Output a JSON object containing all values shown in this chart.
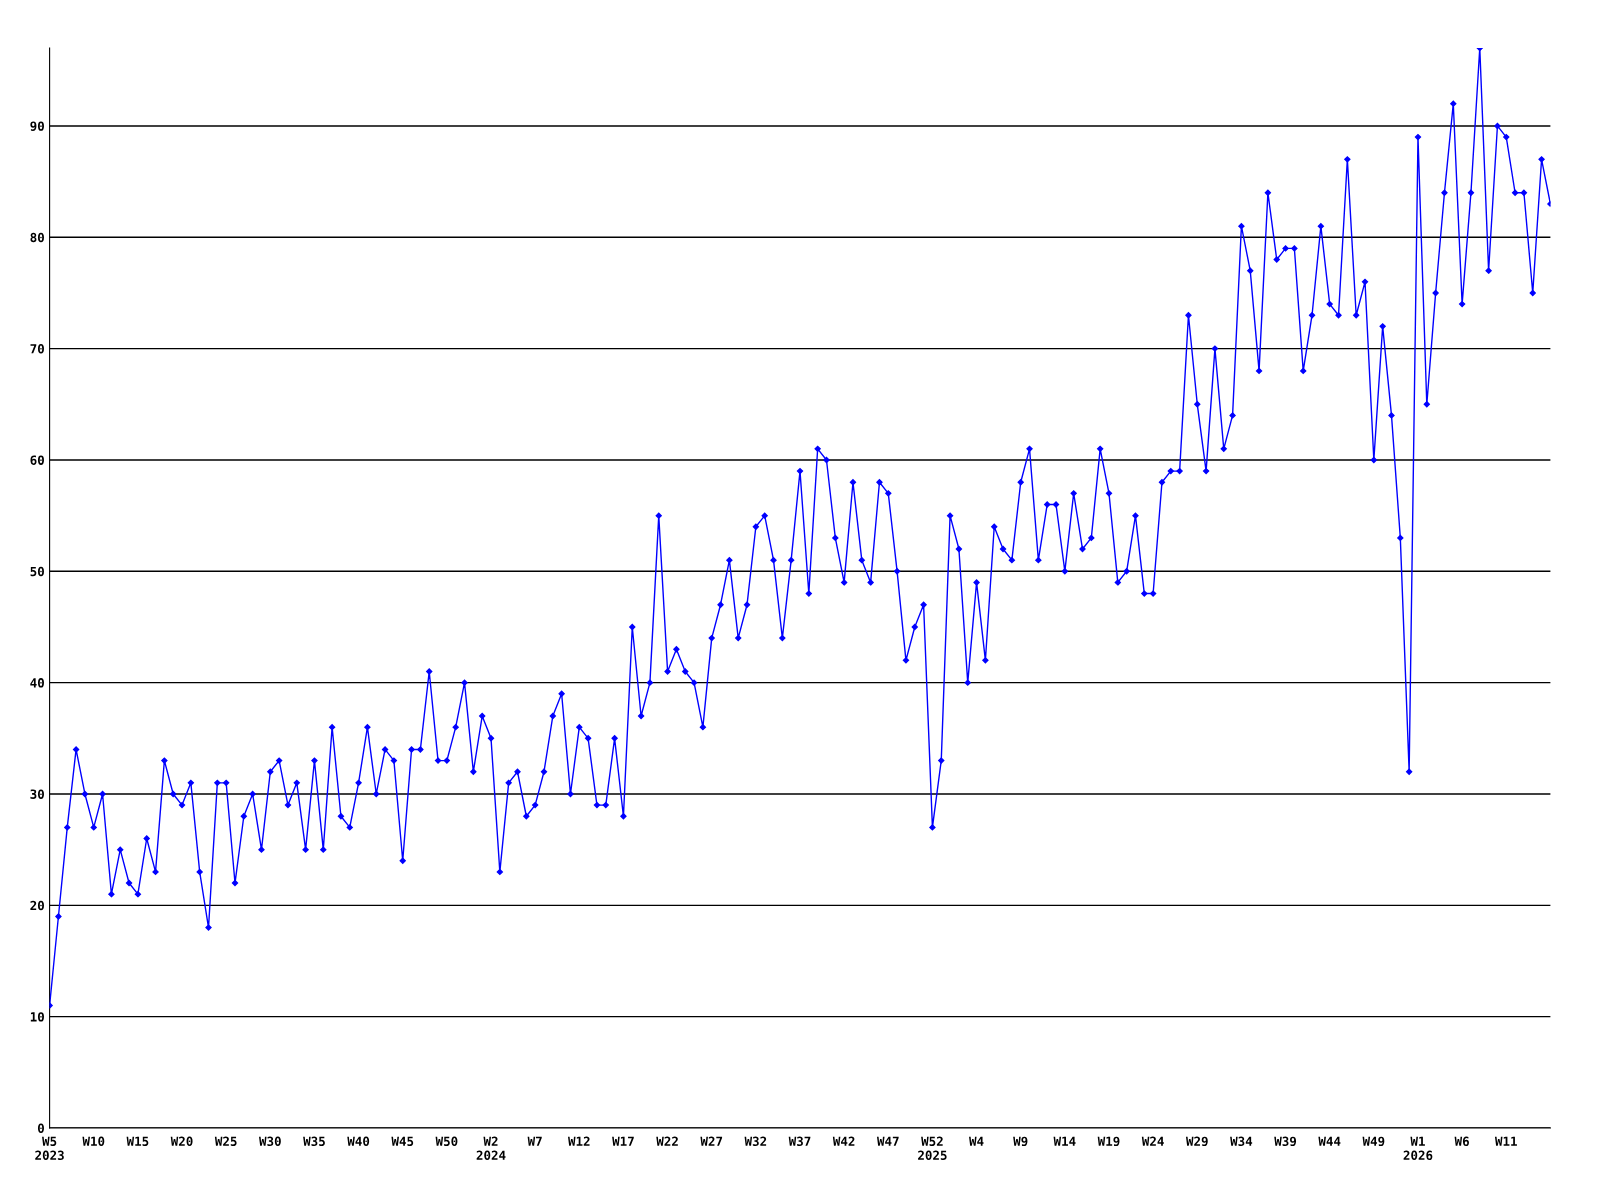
{
  "chart_data": {
    "type": "line",
    "categories": [
      "W5\n2023",
      null,
      null,
      null,
      null,
      "W10",
      null,
      null,
      null,
      null,
      "W15",
      null,
      null,
      null,
      null,
      "W20",
      null,
      null,
      null,
      null,
      "W25",
      null,
      null,
      null,
      null,
      "W30",
      null,
      null,
      null,
      null,
      "W35",
      null,
      null,
      null,
      null,
      "W40",
      null,
      null,
      null,
      null,
      "W45",
      null,
      null,
      null,
      null,
      "W50",
      null,
      null,
      null,
      null,
      "W2\n2024",
      null,
      null,
      null,
      null,
      "W7",
      null,
      null,
      null,
      null,
      "W12",
      null,
      null,
      null,
      null,
      "W17",
      null,
      null,
      null,
      null,
      "W22",
      null,
      null,
      null,
      null,
      "W27",
      null,
      null,
      null,
      null,
      "W32",
      null,
      null,
      null,
      null,
      "W37",
      null,
      null,
      null,
      null,
      "W42",
      null,
      null,
      null,
      null,
      "W47",
      null,
      null,
      null,
      null,
      "W52\n2025",
      null,
      null,
      null,
      null,
      "W4",
      null,
      null,
      null,
      null,
      "W9",
      null,
      null,
      null,
      null,
      "W14",
      null,
      null,
      null,
      null,
      "W19",
      null,
      null,
      null,
      null,
      "W24",
      null,
      null,
      null,
      null,
      "W29",
      null,
      null,
      null,
      null,
      "W34",
      null,
      null,
      null,
      null,
      "W39",
      null,
      null,
      null,
      null,
      "W44",
      null,
      null,
      null,
      null,
      "W49",
      null,
      null,
      null,
      null,
      "W1\n2026",
      null,
      null,
      null,
      null,
      "W6",
      null,
      null,
      null,
      null,
      "W11",
      null,
      null,
      null,
      null,
      null
    ],
    "series": [
      {
        "color": "#0000ff",
        "values": [
          11,
          19,
          27,
          34,
          30,
          27,
          30,
          21,
          25,
          22,
          21,
          26,
          23,
          33,
          30,
          29,
          31,
          23,
          18,
          31,
          31,
          22,
          28,
          30,
          25,
          32,
          33,
          29,
          31,
          25,
          33,
          25,
          36,
          28,
          27,
          31,
          36,
          30,
          34,
          33,
          24,
          34,
          34,
          41,
          33,
          33,
          36,
          40,
          32,
          37,
          35,
          23,
          31,
          32,
          28,
          29,
          32,
          37,
          39,
          30,
          36,
          35,
          29,
          29,
          35,
          28,
          45,
          37,
          40,
          55,
          41,
          43,
          41,
          40,
          36,
          44,
          47,
          51,
          44,
          47,
          54,
          55,
          51,
          44,
          51,
          59,
          48,
          61,
          60,
          53,
          49,
          58,
          51,
          49,
          58,
          57,
          50,
          42,
          45,
          47,
          27,
          33,
          55,
          52,
          40,
          49,
          42,
          54,
          52,
          51,
          58,
          61,
          51,
          56,
          56,
          50,
          57,
          52,
          53,
          61,
          57,
          49,
          50,
          55,
          48,
          48,
          58,
          59,
          59,
          73,
          65,
          59,
          70,
          61,
          64,
          81,
          77,
          68,
          84,
          78,
          79,
          79,
          68,
          73,
          81,
          74,
          73,
          87,
          73,
          76,
          60,
          72,
          64,
          53,
          32,
          89,
          65,
          75,
          84,
          92,
          74,
          84,
          97,
          77,
          90,
          89,
          84,
          84,
          75,
          87,
          83
        ]
      }
    ],
    "ylim": [
      0,
      97
    ],
    "yticks": [
      0,
      10,
      20,
      30,
      40,
      50,
      60,
      70,
      80,
      90
    ],
    "grid": "y",
    "marker": "diamond",
    "line_style": "solid"
  }
}
